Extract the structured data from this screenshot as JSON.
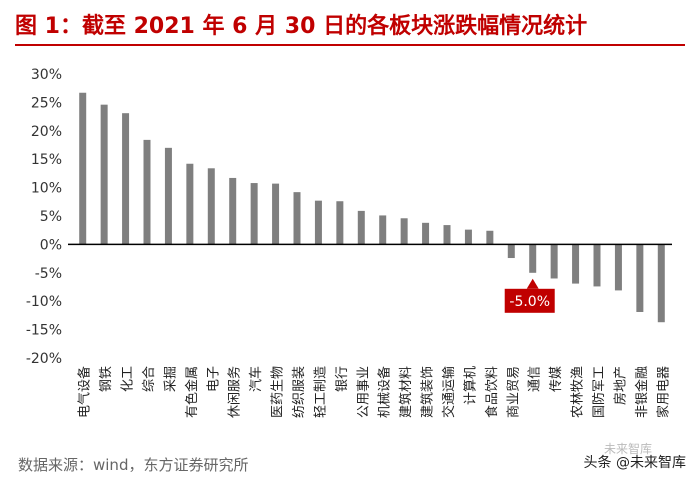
{
  "title": "图 1：截至 2021 年 6 月 30 日的各板块涨跌幅情况统计",
  "source": "数据来源：wind，东方证券研究所",
  "watermark": "头条 @未来智库",
  "watermark_faded": "未来智库",
  "colors": {
    "title": "#c00000",
    "bar": "#7f7f7f",
    "callout": "#c00000",
    "axis": "#000000"
  },
  "chart_data": {
    "type": "bar",
    "categories": [
      "电气设备",
      "钢铁",
      "化工",
      "综合",
      "采掘",
      "有色金属",
      "电子",
      "休闲服务",
      "汽车",
      "医药生物",
      "纺织服装",
      "轻工制造",
      "银行",
      "公用事业",
      "机械设备",
      "建筑材料",
      "建筑装饰",
      "交通运输",
      "计算机",
      "食品饮料",
      "商业贸易",
      "通信",
      "传媒",
      "农林牧渔",
      "国防军工",
      "房地产",
      "非银金融",
      "家用电器"
    ],
    "values": [
      26.7,
      24.6,
      23.1,
      18.4,
      17.0,
      14.2,
      13.4,
      11.7,
      10.8,
      10.7,
      9.2,
      7.7,
      7.6,
      5.9,
      5.1,
      4.6,
      3.8,
      3.4,
      2.6,
      2.4,
      -2.4,
      -5.0,
      -6.0,
      -6.9,
      -7.4,
      -8.1,
      -11.9,
      -13.7
    ],
    "yticks": [
      "30%",
      "25%",
      "20%",
      "15%",
      "10%",
      "5%",
      "0%",
      "-5%",
      "-10%",
      "-15%",
      "-20%"
    ],
    "ylim": [
      -20,
      30
    ],
    "grid": false,
    "annotation": {
      "category": "通信",
      "text": "-5.0%"
    }
  }
}
